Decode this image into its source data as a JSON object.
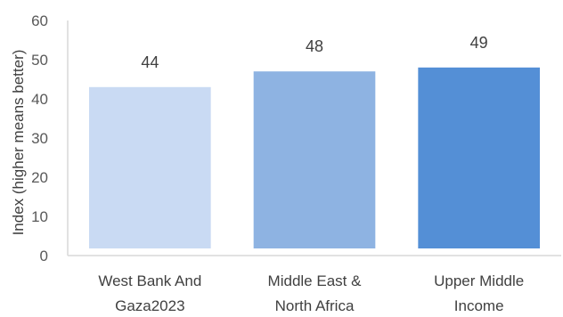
{
  "chart_data": {
    "type": "bar",
    "categories": [
      [
        "West Bank And",
        "Gaza2023"
      ],
      [
        "Middle East &",
        "North Africa"
      ],
      [
        "Upper Middle",
        "Income"
      ]
    ],
    "values": [
      44,
      48,
      49
    ],
    "data_labels": [
      "44",
      "48",
      "49"
    ],
    "colors": [
      "#c9daf3",
      "#8eb3e2",
      "#548fd6"
    ],
    "ylabel": "Index (higher means better)",
    "ylim": [
      0,
      60
    ],
    "yticks": [
      "0",
      "10",
      "20",
      "30",
      "40",
      "50",
      "60"
    ],
    "grid": false,
    "legend": "none"
  }
}
